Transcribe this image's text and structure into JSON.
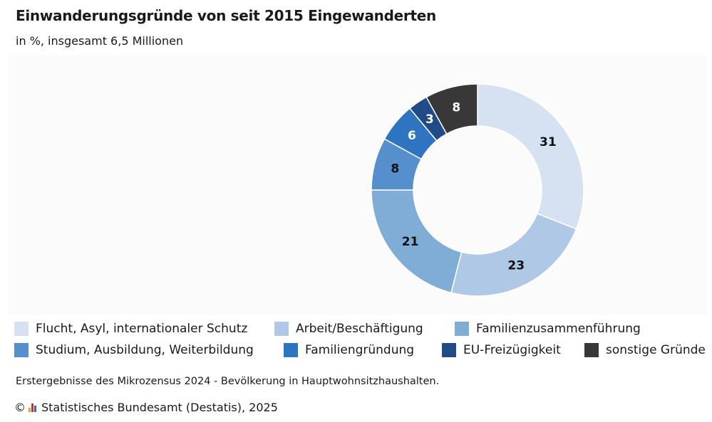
{
  "title": "Einwanderungsgründe von seit 2015 Eingewanderten",
  "subtitle": "in %, insgesamt 6,5 Millionen",
  "chart_data": {
    "type": "pie",
    "variant": "donut",
    "categories": [
      "Flucht, Asyl, internationaler Schutz",
      "Arbeit/Beschäftigung",
      "Familienzusammenführung",
      "Studium, Ausbildung, Weiterbildung",
      "Familiengründung",
      "EU-Freizügigkeit",
      "sonstige Gründe"
    ],
    "values": [
      31,
      23,
      21,
      8,
      6,
      3,
      8
    ],
    "labels": [
      "31",
      "23",
      "21",
      "8",
      "6",
      "3",
      "8"
    ],
    "colors": [
      "#d6e2f2",
      "#aec8e6",
      "#7fadd5",
      "#5590cc",
      "#2f74c0",
      "#1f4c86",
      "#383838"
    ],
    "label_colors": [
      "#111111",
      "#111111",
      "#111111",
      "#111111",
      "#ffffff",
      "#ffffff",
      "#ffffff"
    ],
    "legend_position": "bottom"
  },
  "legend": [
    {
      "label": "Flucht, Asyl, internationaler Schutz",
      "color": "#d6e2f2"
    },
    {
      "label": "Arbeit/Beschäftigung",
      "color": "#aec8e6"
    },
    {
      "label": "Familienzusammenführung",
      "color": "#7fadd5"
    },
    {
      "label": "Studium, Ausbildung, Weiterbildung",
      "color": "#5590cc"
    },
    {
      "label": "Familiengründung",
      "color": "#2f74c0"
    },
    {
      "label": "EU-Freizügigkeit",
      "color": "#1f4c86"
    },
    {
      "label": "sonstige Gründe",
      "color": "#383838"
    }
  ],
  "source": "Erstergebnisse des Mikrozensus 2024 - Bevölkerung in Hauptwohnsitzhaushalten.",
  "copyright": {
    "symbol": "©",
    "text": "Statistisches Bundesamt (Destatis), 2025",
    "logo_colors": [
      "#e8a33a",
      "#c8352b",
      "#2b6fb6"
    ]
  }
}
